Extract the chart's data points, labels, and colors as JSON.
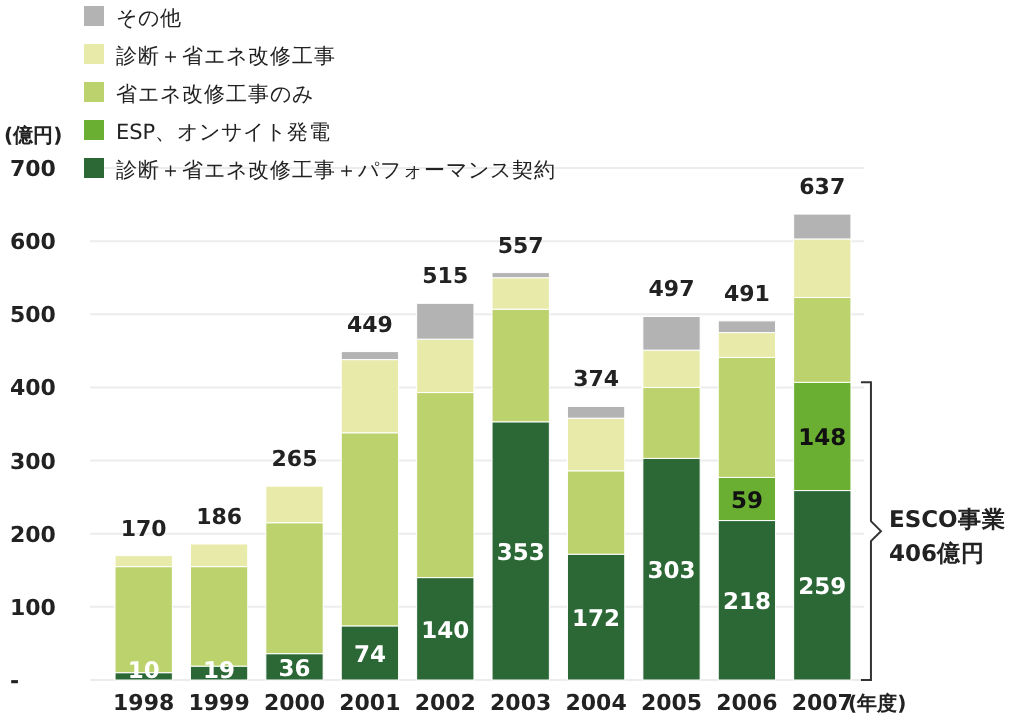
{
  "chart_data": {
    "type": "bar",
    "stacked": true,
    "xlabel": "(年度)",
    "ylabel": "(億円)",
    "categories": [
      "1998",
      "1999",
      "2000",
      "2001",
      "2002",
      "2003",
      "2004",
      "2005",
      "2006",
      "2007"
    ],
    "series": [
      {
        "name": "診断＋省エネ改修工事＋パフォーマンス契約",
        "color": "#2b6836",
        "values": [
          10,
          19,
          36,
          74,
          140,
          353,
          172,
          303,
          218,
          259
        ],
        "value_labels": [
          "10",
          "19",
          "36",
          "74",
          "140",
          "353",
          "172",
          "303",
          "218",
          "259"
        ]
      },
      {
        "name": "ESP、オンサイト発電",
        "color": "#6aaf32",
        "values": [
          null,
          null,
          null,
          null,
          null,
          null,
          null,
          null,
          59,
          148
        ],
        "value_labels": [
          null,
          null,
          null,
          null,
          null,
          null,
          null,
          null,
          "59",
          "148"
        ]
      },
      {
        "name": "省エネ改修工事のみ",
        "color": "#bcd26c",
        "values": [
          145,
          136,
          179,
          264,
          253,
          154,
          114,
          97,
          164,
          116
        ]
      },
      {
        "name": "診断＋省エネ改修工事",
        "color": "#e8eaaa",
        "values": [
          15,
          31,
          50,
          100,
          73,
          43,
          72,
          51,
          34,
          80
        ]
      },
      {
        "name": "その他",
        "color": "#b3b3b3",
        "values": [
          null,
          null,
          null,
          11,
          49,
          7,
          16,
          46,
          16,
          34
        ]
      }
    ],
    "totals": [
      "170",
      "186",
      "265",
      "449",
      "515",
      "557",
      "374",
      "497",
      "491",
      "637"
    ],
    "ylim": [
      0,
      700
    ],
    "yticks": [
      {
        "value": 0,
        "label": "-"
      },
      100,
      200,
      300,
      400,
      500,
      600,
      700
    ],
    "grid": "y",
    "legend": "top left",
    "annotations": [
      "ESCO事業\n406億円"
    ]
  }
}
